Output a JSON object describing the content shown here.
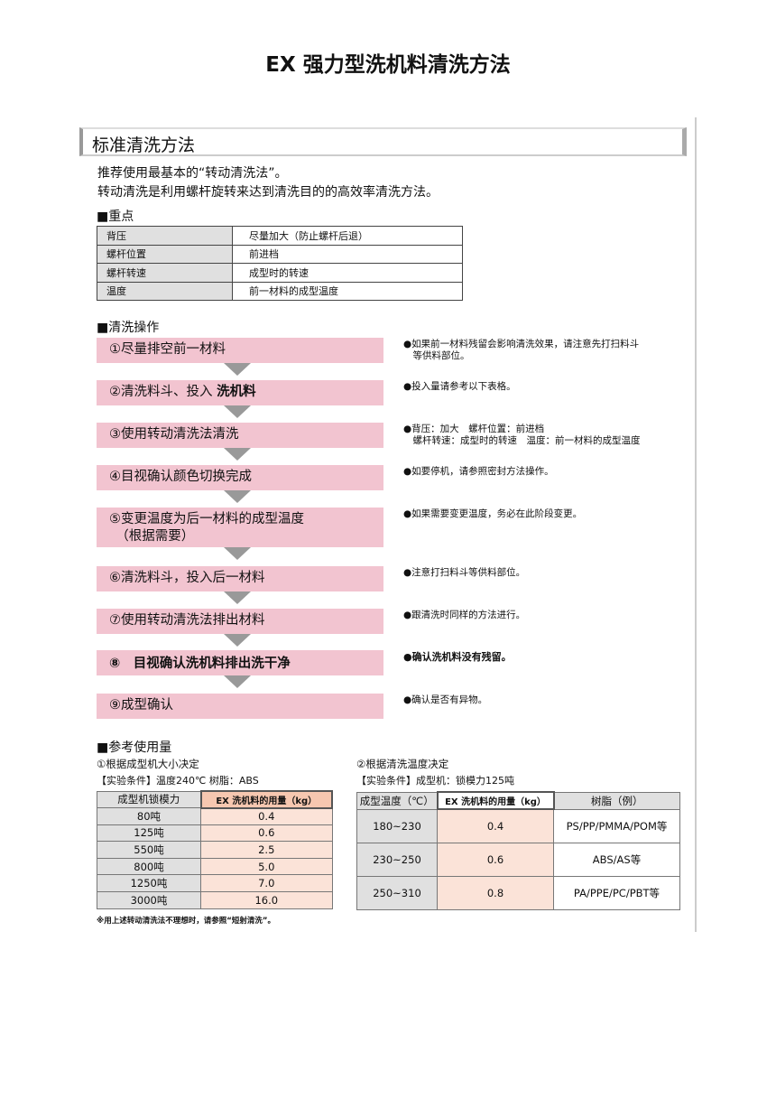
{
  "title": "EX 强力型洗机料清洗方法",
  "section_header": "标准清洗方法",
  "intro": [
    "推荐使用最基本的“转动清洗法”。",
    "转动清洗是利用螺杆旋转来达到清洗目的的高效率清洗方法。"
  ],
  "key_points": {
    "heading": "■重点",
    "rows": [
      [
        "背压",
        "尽量加大（防止螺杆后退）"
      ],
      [
        "螺杆位置",
        "前进档"
      ],
      [
        "螺杆转速",
        "成型时的转速"
      ],
      [
        "温度",
        "前一材料的成型温度"
      ]
    ]
  },
  "operations": {
    "heading": "■清洗操作",
    "steps": [
      {
        "label": "①尽量排空前一材料",
        "note": "●如果前一材料残留会影响清洗效果，请注意先打扫料斗\n　等供料部位。"
      },
      {
        "label": "②清洗料斗、投入 ",
        "label_bold": "洗机料",
        "note": "●投入量请参考以下表格。"
      },
      {
        "label": "③使用转动清洗法清洗",
        "note": "●背压：加大　螺杆位置：前进档\n　螺杆转速：成型时的转速　温度：前一材料的成型温度"
      },
      {
        "label": "④目视确认颜色切换完成",
        "note": "●如要停机，请参照密封方法操作。"
      },
      {
        "label": "⑤变更温度为后一材料的成型温度\n　（根据需要）",
        "note": "●如果需要变更温度，务必在此阶段变更。"
      },
      {
        "label": "⑥清洗料斗，投入后一材料",
        "note": "●注意打扫料斗等供料部位。"
      },
      {
        "label": "⑦使用转动清洗法排出材料",
        "note": "●跟清洗时同样的方法进行。"
      },
      {
        "label": "⑧　目视确认洗机料排出洗干净",
        "note": "●确认洗机料没有残留。"
      },
      {
        "label": "⑨成型确认",
        "note": "●确认是否有异物。"
      }
    ]
  },
  "reference": {
    "heading": "■参考使用量",
    "left": {
      "subtitle": "①根据成型机大小决定",
      "condition": "【实验条件】温度240℃ 树脂：ABS",
      "headers": [
        "成型机锁模力",
        "EX 洗机料的用量（kg）"
      ],
      "rows": [
        [
          "80吨",
          "0.4"
        ],
        [
          "125吨",
          "0.6"
        ],
        [
          "550吨",
          "2.5"
        ],
        [
          "800吨",
          "5.0"
        ],
        [
          "1250吨",
          "7.0"
        ],
        [
          "3000吨",
          "16.0"
        ]
      ]
    },
    "right": {
      "subtitle": "②根据清洗温度决定",
      "condition": "【实验条件】成型机：锁模力125吨",
      "headers": [
        "成型温度（℃）",
        "EX 洗机料的用量（kg）",
        "树脂（例）"
      ],
      "rows": [
        [
          "180~230",
          "0.4",
          "PS/PP/PMMA/POM等"
        ],
        [
          "230~250",
          "0.6",
          "ABS/AS等"
        ],
        [
          "250~310",
          "0.8",
          "PA/PPE/PC/PBT等"
        ]
      ]
    },
    "footnote": "※用上述转动清洗法不理想时，请参照“短射清洗”。"
  },
  "colors": {
    "step_bg": "#f2c4d0",
    "arrow": "#999999",
    "amount_bg": "#fbe3d8",
    "label_bg": "#e0e0e0"
  }
}
